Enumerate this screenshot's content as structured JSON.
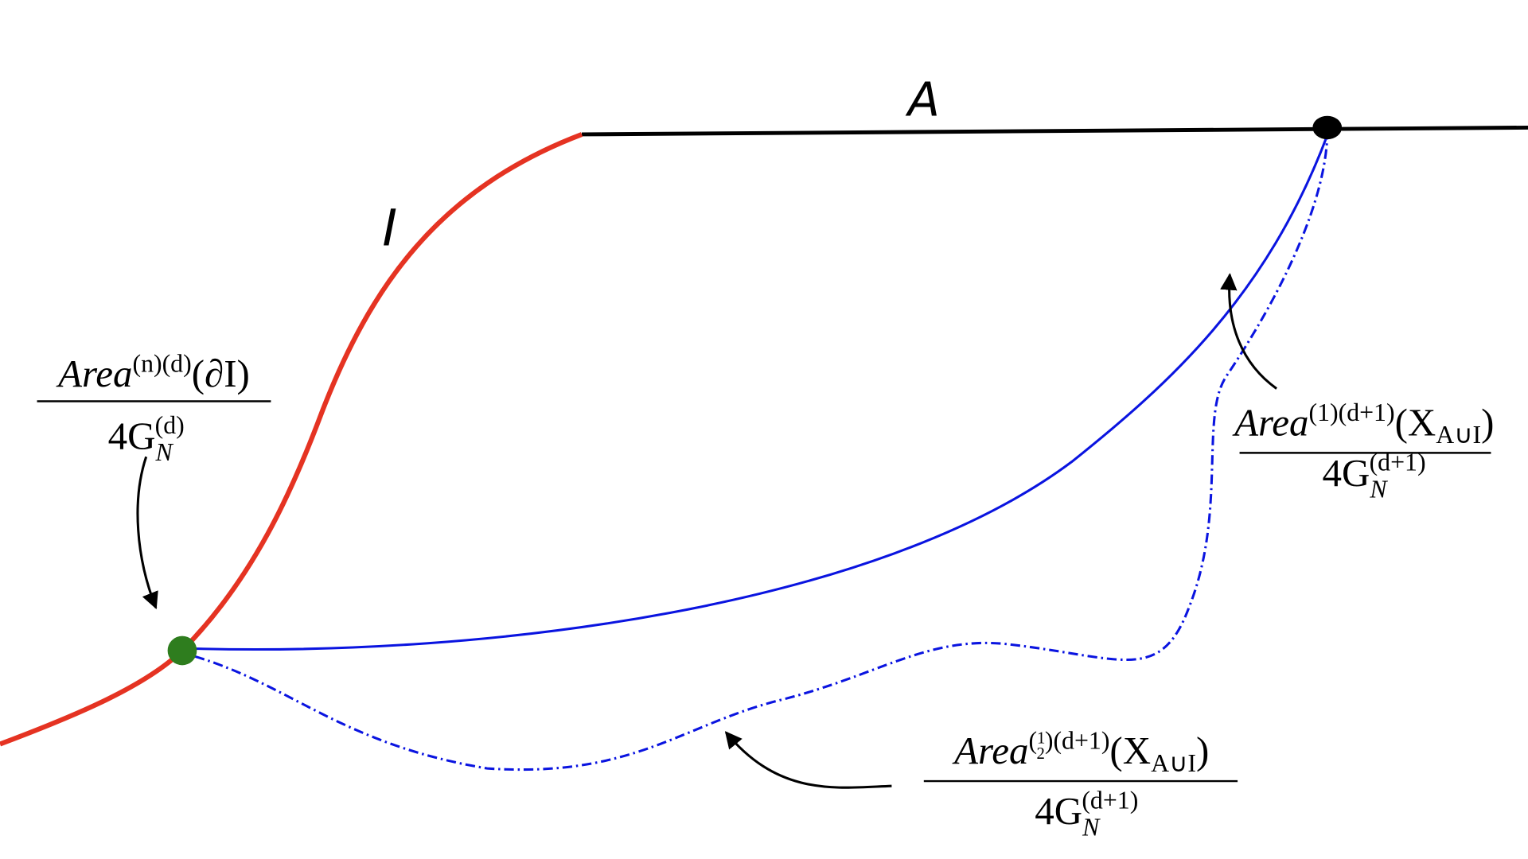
{
  "labels": {
    "A": "A",
    "I": "I"
  },
  "formulas": [
    {
      "numerator": {
        "base": "Area",
        "sup": "(n)(d)",
        "arg": "(∂I)"
      },
      "denominator": {
        "base": "4G",
        "sub": "N",
        "sup": "(d)"
      }
    },
    {
      "numerator": {
        "base": "Area",
        "sup": "(1)(d+1)",
        "arg": "(X",
        "sub": "A∪I",
        "close": ")"
      },
      "denominator": {
        "base": "4G",
        "sub": "N",
        "sup": "(d+1)"
      }
    },
    {
      "numerator": {
        "base": "Area",
        "sup_open": "(",
        "sup_num": "1",
        "sup_den": "2",
        "sup_rest": ")(d+1)",
        "arg": "(X",
        "sub": "A∪I",
        "close": ")"
      },
      "denominator": {
        "base": "4G",
        "sub": "N",
        "sup": "(d+1)"
      }
    }
  ]
}
